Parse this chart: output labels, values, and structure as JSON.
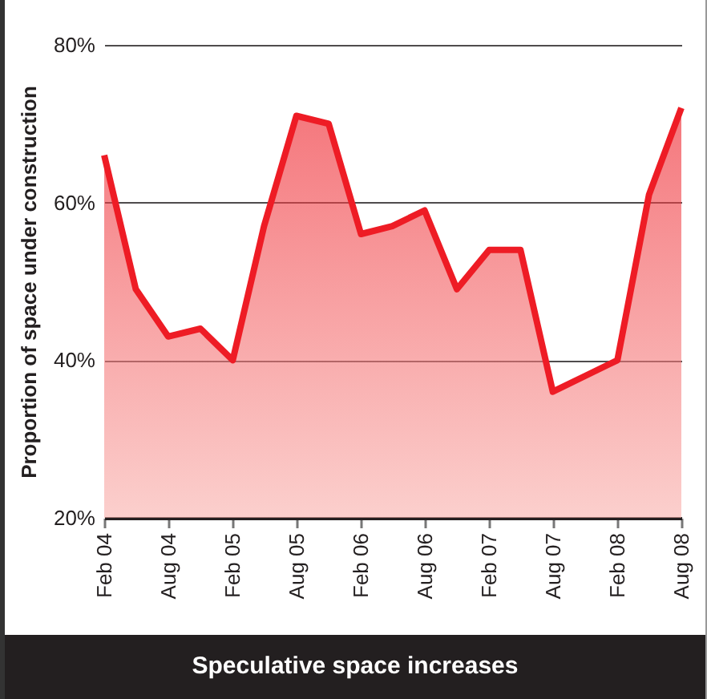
{
  "chart_data": {
    "type": "area",
    "title": "Speculative space increases",
    "ylabel": "Proportion of space under construction",
    "x": [
      "2004-02",
      "2004-05",
      "2004-08",
      "2004-11",
      "2005-02",
      "2005-05",
      "2005-08",
      "2005-11",
      "2006-02",
      "2006-05",
      "2006-08",
      "2006-11",
      "2007-02",
      "2007-05",
      "2007-08",
      "2007-11",
      "2008-02",
      "2008-05",
      "2008-08"
    ],
    "series": [
      {
        "color": "#ee1c25",
        "values": [
          66,
          49,
          43,
          44,
          40,
          57,
          71,
          70,
          56,
          57,
          59,
          49,
          54,
          54,
          36,
          38,
          40,
          61,
          72
        ]
      }
    ],
    "xlim": [
      "2004-02",
      "2008-08"
    ],
    "xticks": [
      {
        "value": "2004-02",
        "label": "Feb 04"
      },
      {
        "value": "2004-08",
        "label": "Aug 04"
      },
      {
        "value": "2005-02",
        "label": "Feb 05"
      },
      {
        "value": "2005-08",
        "label": "Aug 05"
      },
      {
        "value": "2006-02",
        "label": "Feb 06"
      },
      {
        "value": "2006-08",
        "label": "Aug 06"
      },
      {
        "value": "2007-02",
        "label": "Feb 07"
      },
      {
        "value": "2007-08",
        "label": "Aug 07"
      },
      {
        "value": "2008-02",
        "label": "Feb 08"
      },
      {
        "value": "2008-08",
        "label": "Aug 08"
      }
    ],
    "ylim": [
      20,
      80
    ],
    "yticks": [
      {
        "value": 20,
        "label": "20%"
      },
      {
        "value": 40,
        "label": "40%"
      },
      {
        "value": 60,
        "label": "60%"
      },
      {
        "value": 80,
        "label": "80%"
      }
    ],
    "grid": "y",
    "marker": "none",
    "line_style": "solid"
  }
}
